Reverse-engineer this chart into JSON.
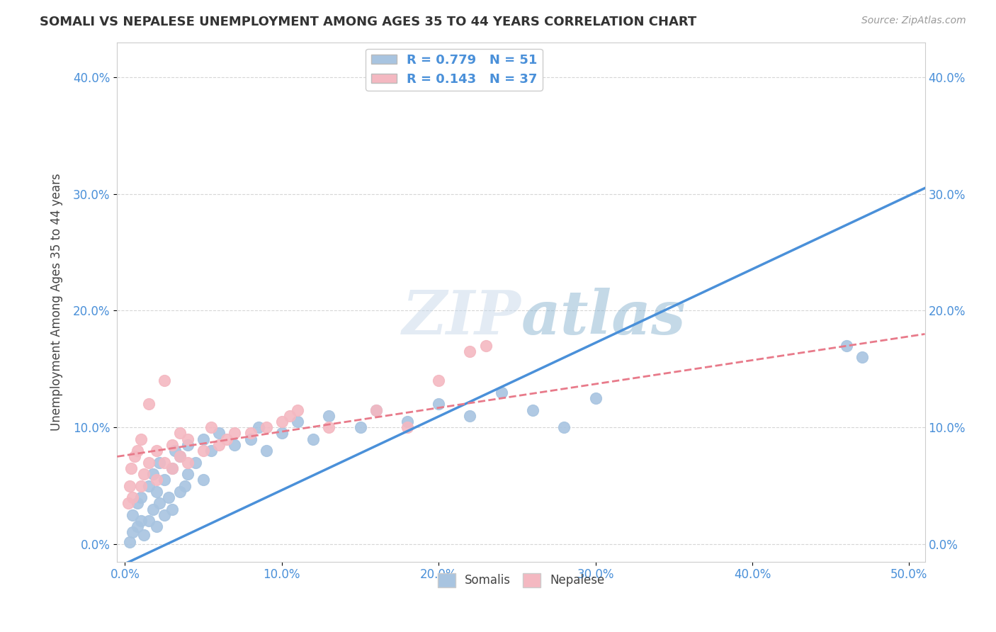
{
  "title": "SOMALI VS NEPALESE UNEMPLOYMENT AMONG AGES 35 TO 44 YEARS CORRELATION CHART",
  "source": "Source: ZipAtlas.com",
  "ylabel": "Unemployment Among Ages 35 to 44 years",
  "xlabel_vals": [
    0,
    10,
    20,
    30,
    40,
    50
  ],
  "ylabel_vals": [
    0,
    10,
    20,
    30,
    40
  ],
  "somali_R": "0.779",
  "somali_N": "51",
  "nepalese_R": "0.143",
  "nepalese_N": "37",
  "somali_color": "#a8c4e0",
  "nepalese_color": "#f4b8c1",
  "somali_line_color": "#4a90d9",
  "nepalese_line_color": "#e87a8a",
  "xlim": [
    -0.5,
    51
  ],
  "ylim": [
    -1.5,
    43
  ],
  "somali_x": [
    0.3,
    0.5,
    0.5,
    0.8,
    0.8,
    1.0,
    1.0,
    1.2,
    1.5,
    1.5,
    1.8,
    1.8,
    2.0,
    2.0,
    2.2,
    2.2,
    2.5,
    2.5,
    2.8,
    3.0,
    3.0,
    3.2,
    3.5,
    3.5,
    3.8,
    4.0,
    4.0,
    4.5,
    5.0,
    5.0,
    5.5,
    6.0,
    7.0,
    8.0,
    8.5,
    9.0,
    10.0,
    11.0,
    12.0,
    13.0,
    15.0,
    16.0,
    18.0,
    20.0,
    22.0,
    24.0,
    26.0,
    28.0,
    30.0,
    46.0,
    47.0
  ],
  "somali_y": [
    0.2,
    1.0,
    2.5,
    1.5,
    3.5,
    2.0,
    4.0,
    0.8,
    2.0,
    5.0,
    3.0,
    6.0,
    1.5,
    4.5,
    3.5,
    7.0,
    2.5,
    5.5,
    4.0,
    3.0,
    6.5,
    8.0,
    4.5,
    7.5,
    5.0,
    6.0,
    8.5,
    7.0,
    5.5,
    9.0,
    8.0,
    9.5,
    8.5,
    9.0,
    10.0,
    8.0,
    9.5,
    10.5,
    9.0,
    11.0,
    10.0,
    11.5,
    10.5,
    12.0,
    11.0,
    13.0,
    11.5,
    10.0,
    12.5,
    17.0,
    16.0
  ],
  "nepalese_x": [
    0.2,
    0.3,
    0.4,
    0.5,
    0.6,
    0.8,
    1.0,
    1.0,
    1.2,
    1.5,
    1.5,
    2.0,
    2.0,
    2.5,
    2.5,
    3.0,
    3.0,
    3.5,
    3.5,
    4.0,
    4.0,
    5.0,
    5.5,
    6.0,
    6.5,
    7.0,
    8.0,
    9.0,
    10.0,
    10.5,
    11.0,
    13.0,
    16.0,
    18.0,
    20.0,
    22.0,
    23.0
  ],
  "nepalese_y": [
    3.5,
    5.0,
    6.5,
    4.0,
    7.5,
    8.0,
    5.0,
    9.0,
    6.0,
    7.0,
    12.0,
    5.5,
    8.0,
    7.0,
    14.0,
    6.5,
    8.5,
    7.5,
    9.5,
    7.0,
    9.0,
    8.0,
    10.0,
    8.5,
    9.0,
    9.5,
    9.5,
    10.0,
    10.5,
    11.0,
    11.5,
    10.0,
    11.5,
    10.0,
    14.0,
    16.5,
    17.0
  ],
  "somali_line_x": [
    -0.5,
    51
  ],
  "somali_line_y": [
    -2.0,
    30.5
  ],
  "nepalese_line_x": [
    -0.5,
    51
  ],
  "nepalese_line_y": [
    7.5,
    18.0
  ]
}
